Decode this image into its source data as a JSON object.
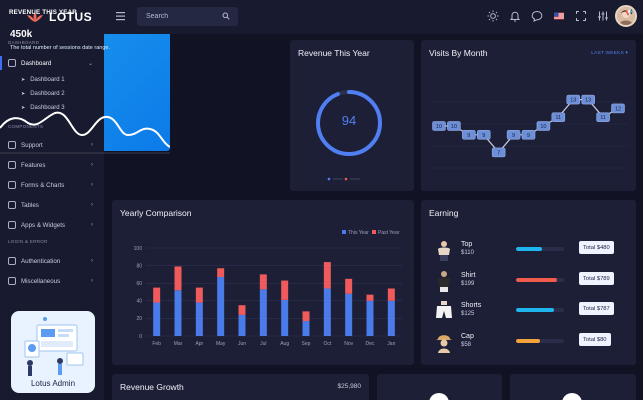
{
  "brand": {
    "name": "LOTUS"
  },
  "sidebar": {
    "section_dashboard": "DASHBOARD",
    "dashboard": "Dashboard",
    "sub_items": [
      "Dashboard 1",
      "Dashboard 2",
      "Dashboard 3"
    ],
    "section_components": "COMPONENTS",
    "components": [
      "Support",
      "Features",
      "Forms & Charts",
      "Tables",
      "Apps & Widgets"
    ],
    "section_login": "LOGIN & ERROR",
    "login_items": [
      "Authentication",
      "Miscellaneous"
    ],
    "promo_label": "Lotus Admin"
  },
  "header": {
    "search_placeholder": "Search"
  },
  "revenue_card": {
    "title": "REVENUE THIS YEAR",
    "value": "450k",
    "description": "The total number of sessions date range."
  },
  "donut_card": {
    "title": "Revenue This Year",
    "value": "94",
    "percent": 94
  },
  "visits_card": {
    "title": "Visits By Month",
    "dropdown": "LAST WEEKS ▾"
  },
  "yearly_card": {
    "title": "Yearly Comparison"
  },
  "earning": {
    "title": "Earning",
    "items": [
      {
        "name": "Top",
        "price": "$110",
        "badge": "Total $480",
        "progress": 0.55,
        "color": "#1fb6f0"
      },
      {
        "name": "Shirt",
        "price": "$199",
        "badge": "Total $789",
        "progress": 0.85,
        "color": "#ef5b4c"
      },
      {
        "name": "Shorts",
        "price": "$125",
        "badge": "Total $787",
        "progress": 0.8,
        "color": "#1fb6f0"
      },
      {
        "name": "Cap",
        "price": "$58",
        "badge": "Total $80",
        "progress": 0.5,
        "color": "#f2a33a"
      }
    ]
  },
  "growth_card": {
    "title": "Revenue Growth",
    "value": "$25,980"
  },
  "chart_data": [
    {
      "type": "line",
      "title": "Visits By Month",
      "points": [
        10,
        10,
        9,
        9,
        7,
        9,
        9,
        10,
        11,
        13,
        13,
        11,
        12
      ],
      "ylim": [
        5,
        15
      ]
    },
    {
      "type": "bar",
      "title": "Yearly Comparison",
      "categories": [
        "Feb",
        "Mar",
        "Apr",
        "May",
        "Jun",
        "Jul",
        "Aug",
        "Sep",
        "Oct",
        "Nov",
        "Dec",
        "Jan"
      ],
      "series": [
        {
          "name": "This Year",
          "color": "#4a7be8",
          "values": [
            38,
            52,
            38,
            67,
            24,
            53,
            41,
            17,
            54,
            48,
            40,
            40
          ]
        },
        {
          "name": "Past Year",
          "color": "#ef5b5b",
          "values": [
            17,
            27,
            17,
            10,
            11,
            17,
            22,
            11,
            30,
            17,
            7,
            14
          ]
        }
      ],
      "yticks": [
        0,
        20,
        40,
        60,
        80,
        100
      ],
      "ylim": [
        0,
        100
      ]
    }
  ]
}
